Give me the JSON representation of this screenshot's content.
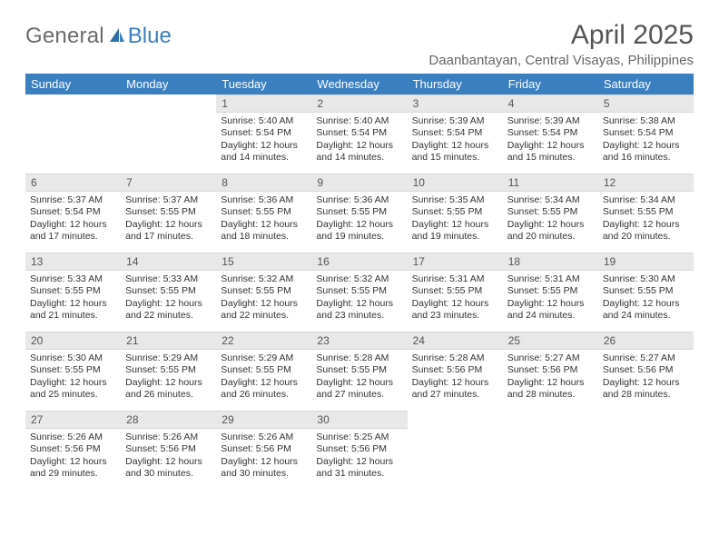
{
  "logo": {
    "text_gray": "General",
    "text_blue": "Blue"
  },
  "title": "April 2025",
  "location": "Daanbantayan, Central Visayas, Philippines",
  "colors": {
    "header_bg": "#3a7fbf",
    "header_fg": "#ffffff",
    "daynum_bg": "#e8e8e8",
    "page_bg": "#ffffff",
    "text": "#333333",
    "title_color": "#555555",
    "location_color": "#666666",
    "logo_gray": "#6b6b6b",
    "logo_blue": "#3a7fbf"
  },
  "dayHeaders": [
    "Sunday",
    "Monday",
    "Tuesday",
    "Wednesday",
    "Thursday",
    "Friday",
    "Saturday"
  ],
  "labels": {
    "sunrise": "Sunrise:",
    "sunset": "Sunset:",
    "daylight": "Daylight:"
  },
  "firstDayOfWeekIndex": 2,
  "days": [
    {
      "n": 1,
      "sunrise": "5:40 AM",
      "sunset": "5:54 PM",
      "daylight": "12 hours and 14 minutes."
    },
    {
      "n": 2,
      "sunrise": "5:40 AM",
      "sunset": "5:54 PM",
      "daylight": "12 hours and 14 minutes."
    },
    {
      "n": 3,
      "sunrise": "5:39 AM",
      "sunset": "5:54 PM",
      "daylight": "12 hours and 15 minutes."
    },
    {
      "n": 4,
      "sunrise": "5:39 AM",
      "sunset": "5:54 PM",
      "daylight": "12 hours and 15 minutes."
    },
    {
      "n": 5,
      "sunrise": "5:38 AM",
      "sunset": "5:54 PM",
      "daylight": "12 hours and 16 minutes."
    },
    {
      "n": 6,
      "sunrise": "5:37 AM",
      "sunset": "5:54 PM",
      "daylight": "12 hours and 17 minutes."
    },
    {
      "n": 7,
      "sunrise": "5:37 AM",
      "sunset": "5:55 PM",
      "daylight": "12 hours and 17 minutes."
    },
    {
      "n": 8,
      "sunrise": "5:36 AM",
      "sunset": "5:55 PM",
      "daylight": "12 hours and 18 minutes."
    },
    {
      "n": 9,
      "sunrise": "5:36 AM",
      "sunset": "5:55 PM",
      "daylight": "12 hours and 19 minutes."
    },
    {
      "n": 10,
      "sunrise": "5:35 AM",
      "sunset": "5:55 PM",
      "daylight": "12 hours and 19 minutes."
    },
    {
      "n": 11,
      "sunrise": "5:34 AM",
      "sunset": "5:55 PM",
      "daylight": "12 hours and 20 minutes."
    },
    {
      "n": 12,
      "sunrise": "5:34 AM",
      "sunset": "5:55 PM",
      "daylight": "12 hours and 20 minutes."
    },
    {
      "n": 13,
      "sunrise": "5:33 AM",
      "sunset": "5:55 PM",
      "daylight": "12 hours and 21 minutes."
    },
    {
      "n": 14,
      "sunrise": "5:33 AM",
      "sunset": "5:55 PM",
      "daylight": "12 hours and 22 minutes."
    },
    {
      "n": 15,
      "sunrise": "5:32 AM",
      "sunset": "5:55 PM",
      "daylight": "12 hours and 22 minutes."
    },
    {
      "n": 16,
      "sunrise": "5:32 AM",
      "sunset": "5:55 PM",
      "daylight": "12 hours and 23 minutes."
    },
    {
      "n": 17,
      "sunrise": "5:31 AM",
      "sunset": "5:55 PM",
      "daylight": "12 hours and 23 minutes."
    },
    {
      "n": 18,
      "sunrise": "5:31 AM",
      "sunset": "5:55 PM",
      "daylight": "12 hours and 24 minutes."
    },
    {
      "n": 19,
      "sunrise": "5:30 AM",
      "sunset": "5:55 PM",
      "daylight": "12 hours and 24 minutes."
    },
    {
      "n": 20,
      "sunrise": "5:30 AM",
      "sunset": "5:55 PM",
      "daylight": "12 hours and 25 minutes."
    },
    {
      "n": 21,
      "sunrise": "5:29 AM",
      "sunset": "5:55 PM",
      "daylight": "12 hours and 26 minutes."
    },
    {
      "n": 22,
      "sunrise": "5:29 AM",
      "sunset": "5:55 PM",
      "daylight": "12 hours and 26 minutes."
    },
    {
      "n": 23,
      "sunrise": "5:28 AM",
      "sunset": "5:55 PM",
      "daylight": "12 hours and 27 minutes."
    },
    {
      "n": 24,
      "sunrise": "5:28 AM",
      "sunset": "5:56 PM",
      "daylight": "12 hours and 27 minutes."
    },
    {
      "n": 25,
      "sunrise": "5:27 AM",
      "sunset": "5:56 PM",
      "daylight": "12 hours and 28 minutes."
    },
    {
      "n": 26,
      "sunrise": "5:27 AM",
      "sunset": "5:56 PM",
      "daylight": "12 hours and 28 minutes."
    },
    {
      "n": 27,
      "sunrise": "5:26 AM",
      "sunset": "5:56 PM",
      "daylight": "12 hours and 29 minutes."
    },
    {
      "n": 28,
      "sunrise": "5:26 AM",
      "sunset": "5:56 PM",
      "daylight": "12 hours and 30 minutes."
    },
    {
      "n": 29,
      "sunrise": "5:26 AM",
      "sunset": "5:56 PM",
      "daylight": "12 hours and 30 minutes."
    },
    {
      "n": 30,
      "sunrise": "5:25 AM",
      "sunset": "5:56 PM",
      "daylight": "12 hours and 31 minutes."
    }
  ]
}
